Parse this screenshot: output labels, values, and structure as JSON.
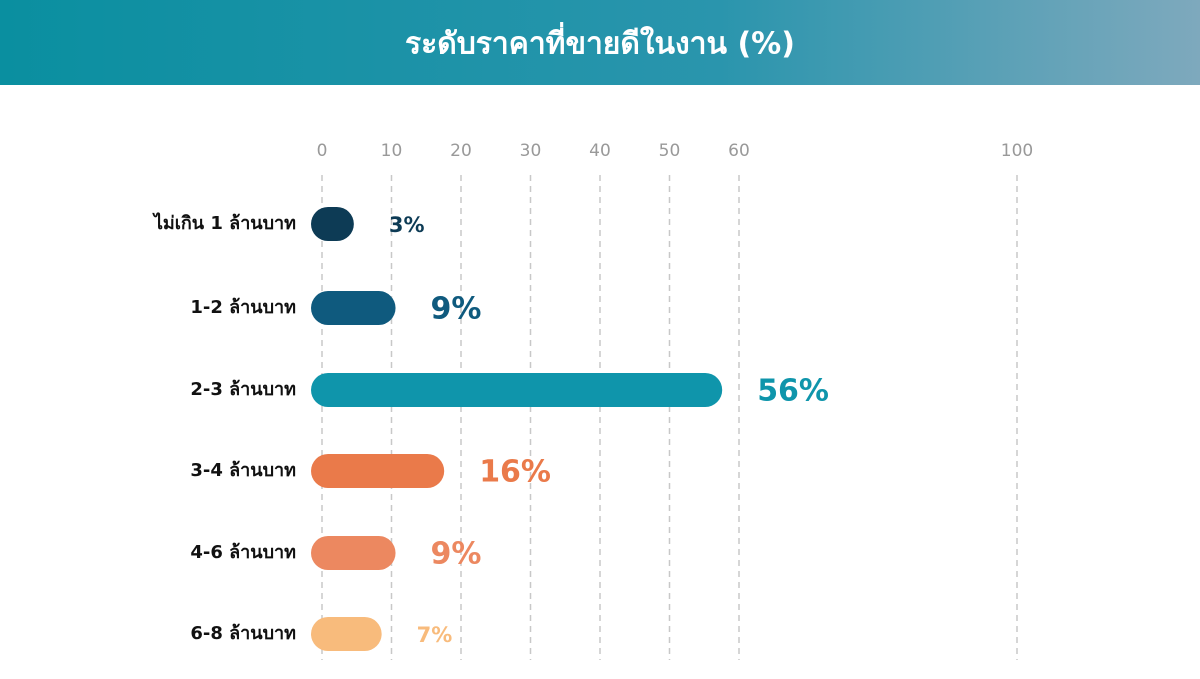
{
  "chart_data": {
    "type": "bar",
    "orientation": "horizontal",
    "title": "ระดับราคาที่ขายดีในงาน (%)",
    "categories": [
      "ไม่เกิน 1 ล้านบาท",
      "1-2 ล้านบาท",
      "2-3 ล้านบาท",
      "3-4 ล้านบาท",
      "4-6 ล้านบาท",
      "6-8  ล้านบาท"
    ],
    "values": [
      3,
      9,
      56,
      16,
      9,
      7
    ],
    "value_labels": [
      "3%",
      "9%",
      "56%",
      "16%",
      "9%",
      "7%"
    ],
    "colors": [
      "#0d3b55",
      "#0f5a7e",
      "#0f95ab",
      "#ea7a4a",
      "#ec8860",
      "#f8bb7c"
    ],
    "xlim": [
      0,
      100
    ],
    "xticks": [
      0,
      10,
      20,
      30,
      40,
      50,
      60,
      100
    ],
    "grid": true
  }
}
